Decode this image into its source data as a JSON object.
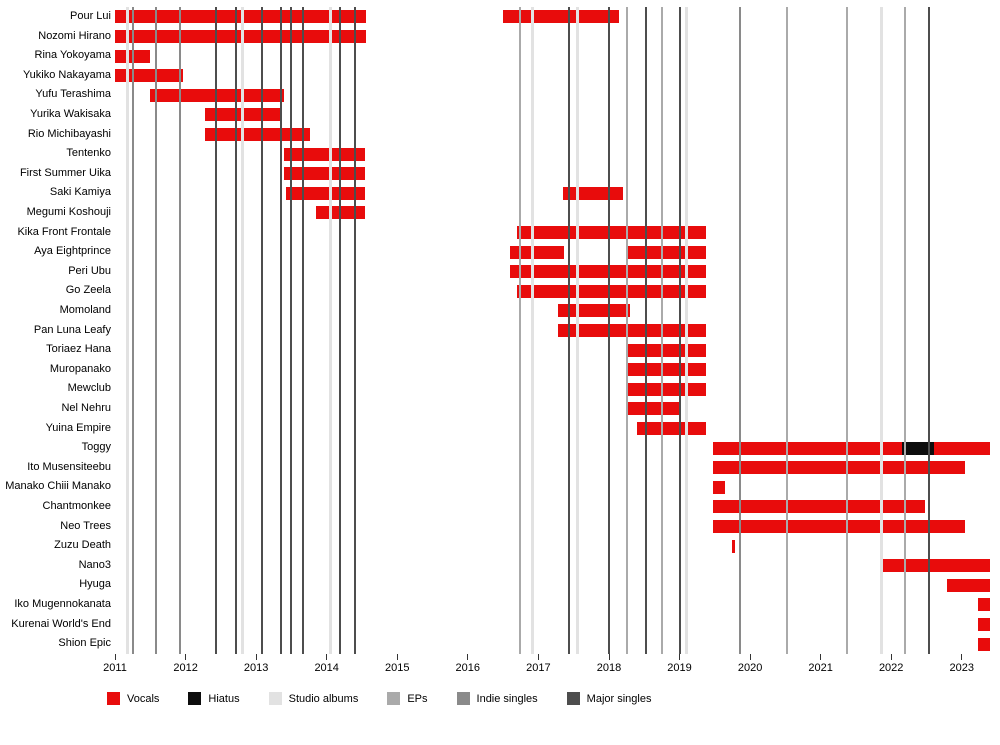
{
  "chart_data": {
    "type": "bar",
    "subtype": "member-timeline-gantt",
    "title": "",
    "x_axis": {
      "min": 2011,
      "max": 2023.4,
      "ticks": [
        2011,
        2012,
        2013,
        2014,
        2015,
        2016,
        2017,
        2018,
        2019,
        2020,
        2021,
        2022,
        2023
      ]
    },
    "legend": [
      {
        "key": "vocals",
        "label": "Vocals",
        "color": "#e80c0c",
        "kind": "bar"
      },
      {
        "key": "hiatus",
        "label": "Hiatus",
        "color": "#0d0d0d",
        "kind": "bar"
      },
      {
        "key": "album",
        "label": "Studio albums",
        "color": "#e2e2e2",
        "kind": "line"
      },
      {
        "key": "ep",
        "label": "EPs",
        "color": "#aaaaaa",
        "kind": "line"
      },
      {
        "key": "indie",
        "label": "Indie singles",
        "color": "#8a8a8a",
        "kind": "line"
      },
      {
        "key": "major",
        "label": "Major singles",
        "color": "#4d4d4d",
        "kind": "line"
      }
    ],
    "members": [
      {
        "name": "Pour Lui",
        "segments": [
          {
            "type": "vocals",
            "start": 2011.0,
            "end": 2014.55
          },
          {
            "type": "vocals",
            "start": 2016.5,
            "end": 2018.15
          }
        ]
      },
      {
        "name": "Nozomi Hirano",
        "segments": [
          {
            "type": "vocals",
            "start": 2011.0,
            "end": 2014.55
          }
        ]
      },
      {
        "name": "Rina Yokoyama",
        "segments": [
          {
            "type": "vocals",
            "start": 2011.0,
            "end": 2011.5
          }
        ]
      },
      {
        "name": "Yukiko Nakayama",
        "segments": [
          {
            "type": "vocals",
            "start": 2011.0,
            "end": 2011.97
          }
        ]
      },
      {
        "name": "Yufu Terashima",
        "segments": [
          {
            "type": "vocals",
            "start": 2011.5,
            "end": 2013.4
          }
        ]
      },
      {
        "name": "Yurika Wakisaka",
        "segments": [
          {
            "type": "vocals",
            "start": 2012.28,
            "end": 2013.35
          }
        ]
      },
      {
        "name": "Rio Michibayashi",
        "segments": [
          {
            "type": "vocals",
            "start": 2012.28,
            "end": 2013.76
          }
        ]
      },
      {
        "name": "Tentenko",
        "segments": [
          {
            "type": "vocals",
            "start": 2013.4,
            "end": 2014.55
          }
        ]
      },
      {
        "name": "First Summer Uika",
        "segments": [
          {
            "type": "vocals",
            "start": 2013.4,
            "end": 2014.55
          }
        ]
      },
      {
        "name": "Saki Kamiya",
        "segments": [
          {
            "type": "vocals",
            "start": 2013.42,
            "end": 2014.55
          },
          {
            "type": "vocals",
            "start": 2017.35,
            "end": 2018.2
          }
        ]
      },
      {
        "name": "Megumi Koshouji",
        "segments": [
          {
            "type": "vocals",
            "start": 2013.85,
            "end": 2014.55
          }
        ]
      },
      {
        "name": "Kika Front Frontale",
        "segments": [
          {
            "type": "vocals",
            "start": 2016.7,
            "end": 2019.37
          }
        ]
      },
      {
        "name": "Aya Eightprince",
        "segments": [
          {
            "type": "vocals",
            "start": 2016.6,
            "end": 2017.37
          },
          {
            "type": "vocals",
            "start": 2018.27,
            "end": 2019.37
          }
        ]
      },
      {
        "name": "Peri Ubu",
        "segments": [
          {
            "type": "vocals",
            "start": 2016.6,
            "end": 2019.37
          }
        ]
      },
      {
        "name": "Go Zeela",
        "segments": [
          {
            "type": "vocals",
            "start": 2016.7,
            "end": 2019.37
          }
        ]
      },
      {
        "name": "Momoland",
        "segments": [
          {
            "type": "vocals",
            "start": 2017.28,
            "end": 2018.3
          }
        ]
      },
      {
        "name": "Pan Luna Leafy",
        "segments": [
          {
            "type": "vocals",
            "start": 2017.28,
            "end": 2019.37
          }
        ]
      },
      {
        "name": "Toriaez Hana",
        "segments": [
          {
            "type": "vocals",
            "start": 2018.27,
            "end": 2019.37
          }
        ]
      },
      {
        "name": "Muropanako",
        "segments": [
          {
            "type": "vocals",
            "start": 2018.27,
            "end": 2019.37
          }
        ]
      },
      {
        "name": "Mewclub",
        "segments": [
          {
            "type": "vocals",
            "start": 2018.27,
            "end": 2019.37
          }
        ]
      },
      {
        "name": "Nel Nehru",
        "segments": [
          {
            "type": "vocals",
            "start": 2018.27,
            "end": 2019.0
          }
        ]
      },
      {
        "name": "Yuina Empire",
        "segments": [
          {
            "type": "vocals",
            "start": 2018.4,
            "end": 2019.37
          }
        ]
      },
      {
        "name": "Toggy",
        "segments": [
          {
            "type": "vocals",
            "start": 2019.47,
            "end": 2022.15
          },
          {
            "type": "hiatus",
            "start": 2022.15,
            "end": 2022.6
          },
          {
            "type": "vocals",
            "start": 2022.6,
            "end": 2023.4
          }
        ]
      },
      {
        "name": "Ito Musensiteebu",
        "segments": [
          {
            "type": "vocals",
            "start": 2019.47,
            "end": 2023.05
          }
        ]
      },
      {
        "name": "Manako Chiii Manako",
        "segments": [
          {
            "type": "vocals",
            "start": 2019.47,
            "end": 2019.65
          }
        ]
      },
      {
        "name": "Chantmonkee",
        "segments": [
          {
            "type": "vocals",
            "start": 2019.47,
            "end": 2022.48
          }
        ]
      },
      {
        "name": "Neo Trees",
        "segments": [
          {
            "type": "vocals",
            "start": 2019.47,
            "end": 2023.05
          }
        ]
      },
      {
        "name": "Zuzu Death",
        "segments": [
          {
            "type": "vocals",
            "start": 2019.74,
            "end": 2019.79
          }
        ]
      },
      {
        "name": "Nano3",
        "segments": [
          {
            "type": "vocals",
            "start": 2021.87,
            "end": 2023.4
          }
        ]
      },
      {
        "name": "Hyuga",
        "segments": [
          {
            "type": "vocals",
            "start": 2022.79,
            "end": 2023.4
          }
        ]
      },
      {
        "name": "Iko Mugennokanata",
        "segments": [
          {
            "type": "vocals",
            "start": 2023.23,
            "end": 2023.4
          }
        ]
      },
      {
        "name": "Kurenai World's End",
        "segments": [
          {
            "type": "vocals",
            "start": 2023.23,
            "end": 2023.4
          }
        ]
      },
      {
        "name": "Shion Epic",
        "segments": [
          {
            "type": "vocals",
            "start": 2023.23,
            "end": 2023.4
          }
        ]
      }
    ],
    "events": [
      {
        "year": 2011.18,
        "type": "album"
      },
      {
        "year": 2011.25,
        "type": "indie"
      },
      {
        "year": 2011.58,
        "type": "indie"
      },
      {
        "year": 2011.92,
        "type": "indie"
      },
      {
        "year": 2012.43,
        "type": "major"
      },
      {
        "year": 2012.72,
        "type": "major"
      },
      {
        "year": 2012.8,
        "type": "album"
      },
      {
        "year": 2013.08,
        "type": "major"
      },
      {
        "year": 2013.35,
        "type": "major"
      },
      {
        "year": 2013.5,
        "type": "major"
      },
      {
        "year": 2013.66,
        "type": "major"
      },
      {
        "year": 2014.05,
        "type": "album"
      },
      {
        "year": 2014.19,
        "type": "major"
      },
      {
        "year": 2014.4,
        "type": "major"
      },
      {
        "year": 2016.74,
        "type": "ep"
      },
      {
        "year": 2016.92,
        "type": "album"
      },
      {
        "year": 2017.44,
        "type": "major"
      },
      {
        "year": 2017.55,
        "type": "album"
      },
      {
        "year": 2018.0,
        "type": "major"
      },
      {
        "year": 2018.25,
        "type": "ep"
      },
      {
        "year": 2018.53,
        "type": "major"
      },
      {
        "year": 2018.75,
        "type": "ep"
      },
      {
        "year": 2019.0,
        "type": "major"
      },
      {
        "year": 2019.1,
        "type": "album"
      },
      {
        "year": 2019.85,
        "type": "indie"
      },
      {
        "year": 2020.52,
        "type": "ep"
      },
      {
        "year": 2021.37,
        "type": "ep"
      },
      {
        "year": 2021.86,
        "type": "album"
      },
      {
        "year": 2022.19,
        "type": "ep"
      },
      {
        "year": 2022.54,
        "type": "major"
      }
    ]
  }
}
